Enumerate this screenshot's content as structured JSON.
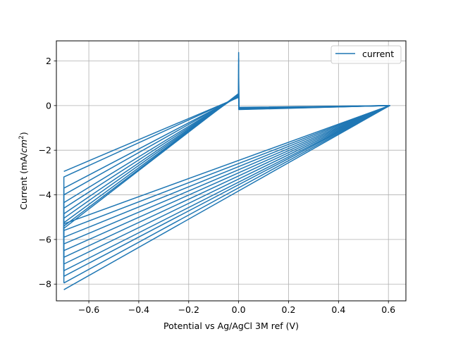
{
  "chart_data": {
    "type": "line",
    "title": "",
    "xlabel": "Potential vs Ag/AgCl 3M ref (V)",
    "ylabel_prefix": "Current (mA/",
    "ylabel_var": "cm",
    "ylabel_exp": "2",
    "ylabel_suffix": ")",
    "xlim": [
      -0.73,
      0.67
    ],
    "ylim": [
      -8.75,
      2.9
    ],
    "xticks": [
      -0.6,
      -0.4,
      -0.2,
      0.0,
      0.2,
      0.4,
      0.6
    ],
    "xtick_labels": [
      "−0.6",
      "−0.4",
      "−0.2",
      "0.0",
      "0.2",
      "0.4",
      "0.6"
    ],
    "yticks": [
      -8,
      -6,
      -4,
      -2,
      0,
      2
    ],
    "ytick_labels": [
      "−8",
      "−6",
      "−4",
      "−2",
      "0",
      "2"
    ],
    "grid": true,
    "legend_position": "top-right",
    "line_color": "#1f77b4",
    "series": [
      {
        "name": "current",
        "cycles": [
          {
            "i_low": -2.95,
            "i_ox_end": 0.37,
            "i_top": 2.38,
            "i_after_top": -0.08,
            "i_at_max": 0.0,
            "i_end": -5.3
          },
          {
            "i_low": -3.2,
            "i_ox_end": 0.38,
            "i_top": 2.1,
            "i_after_top": -0.09,
            "i_at_max": 0.0,
            "i_end": -5.6
          },
          {
            "i_low": -3.7,
            "i_ox_end": 0.4,
            "i_top": 1.85,
            "i_after_top": -0.1,
            "i_at_max": 0.0,
            "i_end": -5.9
          },
          {
            "i_low": -4.0,
            "i_ox_end": 0.42,
            "i_top": 1.6,
            "i_after_top": -0.11,
            "i_at_max": 0.0,
            "i_end": -6.2
          },
          {
            "i_low": -4.35,
            "i_ox_end": 0.44,
            "i_top": 1.4,
            "i_after_top": -0.12,
            "i_at_max": 0.0,
            "i_end": -6.5
          },
          {
            "i_low": -4.6,
            "i_ox_end": 0.45,
            "i_top": 1.2,
            "i_after_top": -0.13,
            "i_at_max": 0.0,
            "i_end": -6.8
          },
          {
            "i_low": -4.85,
            "i_ox_end": 0.47,
            "i_top": 1.0,
            "i_after_top": -0.14,
            "i_at_max": 0.0,
            "i_end": -7.1
          },
          {
            "i_low": -5.05,
            "i_ox_end": 0.48,
            "i_top": 0.85,
            "i_after_top": -0.15,
            "i_at_max": 0.0,
            "i_end": -7.4
          },
          {
            "i_low": -5.25,
            "i_ox_end": 0.5,
            "i_top": 0.7,
            "i_after_top": -0.16,
            "i_at_max": 0.0,
            "i_end": -7.65
          },
          {
            "i_low": -5.4,
            "i_ox_end": 0.52,
            "i_top": 0.55,
            "i_after_top": -0.17,
            "i_at_max": 0.0,
            "i_end": -7.95
          },
          {
            "i_low": -5.5,
            "i_ox_end": 0.54,
            "i_top": 0.45,
            "i_after_top": -0.18,
            "i_at_max": 0.0,
            "i_end": -8.25
          }
        ],
        "x_low": -0.7,
        "x_ox_end": 0.0,
        "x_max": 0.605
      }
    ]
  }
}
